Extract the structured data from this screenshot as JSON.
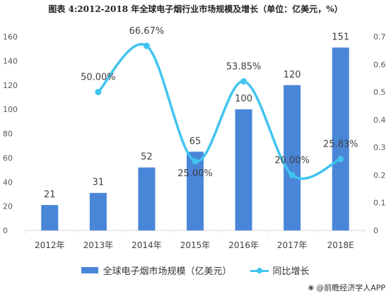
{
  "title": "图表 4:2012-2018 年全球电子烟行业市场规模及增长（单位：亿美元，%）",
  "source": "@前瞻经济学人APP",
  "colors": {
    "bar": "#4a86d8",
    "line": "#41c4f0",
    "axis": "#d9d9d9"
  },
  "chart_data": {
    "type": "bar",
    "categories": [
      "2012年",
      "2013年",
      "2014年",
      "2015年",
      "2016年",
      "2017年",
      "2018E"
    ],
    "series": [
      {
        "name": "全球电子烟市场规模（亿美元）",
        "type": "bar",
        "axis": "left",
        "values": [
          21,
          31,
          52,
          65,
          100,
          120,
          151
        ],
        "labels": [
          "21",
          "31",
          "52",
          "65",
          "100",
          "120",
          "151"
        ]
      },
      {
        "name": "同比增长",
        "type": "line",
        "axis": "right",
        "values": [
          null,
          0.5,
          0.6667,
          0.25,
          0.5385,
          0.2,
          0.2583
        ],
        "labels": [
          "",
          "50.00%",
          "66.67%",
          "25.00%",
          "53.85%",
          "20.00%",
          "25.83%"
        ]
      }
    ],
    "y_left": {
      "ylim": [
        0,
        160
      ],
      "ticks": [
        "0",
        "20",
        "40",
        "60",
        "80",
        "100",
        "120",
        "140",
        "160"
      ]
    },
    "y_right": {
      "ylim": [
        0,
        0.7
      ],
      "ticks": [
        "0",
        "0.1",
        "0.2",
        "0.3",
        "0.4",
        "0.5",
        "0.6",
        "0.7"
      ]
    },
    "grid": false,
    "legend": "bottom"
  }
}
